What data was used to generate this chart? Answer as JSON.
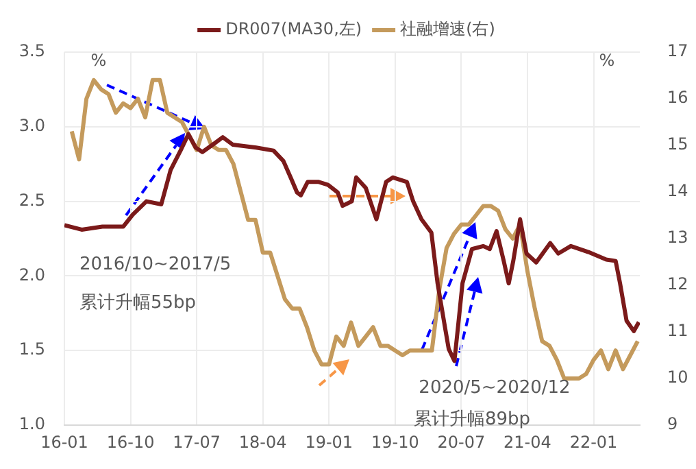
{
  "chart_data": {
    "type": "line",
    "ylabel": "%",
    "y2label": "%",
    "xlim": [
      "2016-01-01",
      "2022-07-10"
    ],
    "xticks": [
      {
        "value": "2016-01",
        "label": "16-01"
      },
      {
        "value": "2016-10",
        "label": "16-10"
      },
      {
        "value": "2017-07",
        "label": "17-07"
      },
      {
        "value": "2018-04",
        "label": "18-04"
      },
      {
        "value": "2019-01",
        "label": "19-01"
      },
      {
        "value": "2019-10",
        "label": "19-10"
      },
      {
        "value": "2020-07",
        "label": "20-07"
      },
      {
        "value": "2021-04",
        "label": "21-04"
      },
      {
        "value": "2022-01",
        "label": "22-01"
      }
    ],
    "ylim": [
      1.0,
      3.5
    ],
    "yticks": [
      {
        "value": 1.0,
        "label": "1.0"
      },
      {
        "value": 1.5,
        "label": "1.5"
      },
      {
        "value": 2.0,
        "label": "2.0"
      },
      {
        "value": 2.5,
        "label": "2.5"
      },
      {
        "value": 3.0,
        "label": "3.0"
      },
      {
        "value": 3.5,
        "label": "3.5"
      }
    ],
    "y2lim": [
      9,
      17
    ],
    "y2ticks": [
      9,
      10,
      11,
      12,
      13,
      14,
      15,
      16,
      17
    ],
    "grid": true,
    "legend": "top",
    "marker": "none",
    "line_style": "solid",
    "annotations": [
      "2016/10~2017/5",
      "累计升幅55bp",
      {
        "text": "2020/5~2020/12",
        "x": "2020-06-03",
        "y": 1.43
      },
      "累计升幅89bp"
    ],
    "series": [
      {
        "name": "DR007(MA30,左)",
        "color": "#7b1a1a",
        "x": [
          "2016-01-01",
          "2016-03-12",
          "2016-06-06",
          "2016-09-01",
          "2016-10-10",
          "2016-12-06",
          "2017-02-06",
          "2017-03-15",
          "2017-04-25",
          "2017-05-28",
          "2017-06-27",
          "2017-07-25",
          "2017-09-15",
          "2017-10-18",
          "2017-11-28",
          "2018-03-04",
          "2018-05-15",
          "2018-06-25",
          "2018-07-28",
          "2018-08-21",
          "2018-09-06",
          "2018-10-04",
          "2018-11-19",
          "2018-12-28",
          "2019-02-06",
          "2019-02-25",
          "2019-04-04",
          "2019-04-22",
          "2019-06-01",
          "2019-07-15",
          "2019-08-25",
          "2019-09-22",
          "2019-11-19",
          "2019-12-15",
          "2020-01-19",
          "2020-02-28",
          "2020-03-25",
          "2020-04-25",
          "2020-05-10",
          "2020-06-03",
          "2020-06-19",
          "2020-07-06",
          "2020-08-15",
          "2020-10-01",
          "2020-10-28",
          "2020-11-25",
          "2020-12-25",
          "2021-01-15",
          "2021-02-03",
          "2021-03-01",
          "2021-03-28",
          "2021-05-07",
          "2021-07-04",
          "2021-08-07",
          "2021-09-28",
          "2021-12-10",
          "2022-02-21",
          "2022-04-01",
          "2022-04-19",
          "2022-05-16",
          "2022-06-15",
          "2022-07-06"
        ],
        "values": [
          2.34,
          2.31,
          2.33,
          2.33,
          2.41,
          2.5,
          2.48,
          2.71,
          2.84,
          2.95,
          2.86,
          2.83,
          2.89,
          2.93,
          2.88,
          2.86,
          2.84,
          2.77,
          2.65,
          2.56,
          2.54,
          2.63,
          2.63,
          2.61,
          2.56,
          2.47,
          2.5,
          2.66,
          2.59,
          2.38,
          2.63,
          2.66,
          2.63,
          2.5,
          2.38,
          2.29,
          1.95,
          1.65,
          1.51,
          1.43,
          1.68,
          1.95,
          2.18,
          2.2,
          2.18,
          2.3,
          2.1,
          1.95,
          2.1,
          2.38,
          2.15,
          2.09,
          2.22,
          2.15,
          2.2,
          2.16,
          2.11,
          2.1,
          1.95,
          1.7,
          1.63,
          1.69
        ]
      },
      {
        "name": "社融增速(右)",
        "color": "#c49a5c",
        "axis": "y2",
        "x": [
          "2016-02",
          "2016-03",
          "2016-04",
          "2016-05",
          "2016-06",
          "2016-07",
          "2016-08",
          "2016-09",
          "2016-10",
          "2016-11",
          "2016-12",
          "2017-01",
          "2017-02",
          "2017-03",
          "2017-04",
          "2017-05",
          "2017-06",
          "2017-07",
          "2017-08",
          "2017-09",
          "2017-10",
          "2017-11",
          "2017-12",
          "2018-01",
          "2018-02",
          "2018-03",
          "2018-04",
          "2018-05",
          "2018-06",
          "2018-07",
          "2018-08",
          "2018-09",
          "2018-10",
          "2018-11",
          "2018-12",
          "2019-01",
          "2019-02",
          "2019-03",
          "2019-04",
          "2019-05",
          "2019-06",
          "2019-07",
          "2019-08",
          "2019-09",
          "2019-10",
          "2019-11",
          "2019-12",
          "2020-01",
          "2020-02",
          "2020-03",
          "2020-04",
          "2020-05",
          "2020-06",
          "2020-07",
          "2020-08",
          "2020-09",
          "2020-10",
          "2020-11",
          "2020-12",
          "2021-01",
          "2021-02",
          "2021-03",
          "2021-04",
          "2021-05",
          "2021-06",
          "2021-07",
          "2021-08",
          "2021-09",
          "2021-10",
          "2021-11",
          "2021-12",
          "2022-01",
          "2022-02",
          "2022-03",
          "2022-04",
          "2022-05",
          "2022-06",
          "2022-07"
        ],
        "values": [
          15.3,
          14.7,
          16.0,
          16.4,
          16.2,
          16.1,
          15.7,
          15.9,
          15.8,
          16.0,
          15.6,
          16.4,
          16.4,
          15.7,
          15.6,
          15.5,
          15.2,
          14.9,
          15.4,
          15.0,
          14.9,
          14.9,
          14.6,
          14.0,
          13.4,
          13.4,
          12.7,
          12.7,
          12.2,
          11.7,
          11.5,
          11.5,
          11.1,
          10.6,
          10.3,
          10.3,
          10.9,
          10.7,
          11.2,
          10.7,
          10.9,
          11.1,
          10.7,
          10.7,
          10.6,
          10.5,
          10.6,
          10.6,
          10.6,
          10.6,
          11.9,
          12.8,
          13.1,
          13.3,
          13.3,
          13.5,
          13.7,
          13.7,
          13.6,
          13.2,
          13.0,
          13.3,
          12.3,
          11.5,
          10.8,
          10.7,
          10.4,
          10.0,
          10.0,
          10.0,
          10.1,
          10.4,
          10.6,
          10.2,
          10.6,
          10.2,
          10.5,
          10.8
        ]
      }
    ]
  }
}
